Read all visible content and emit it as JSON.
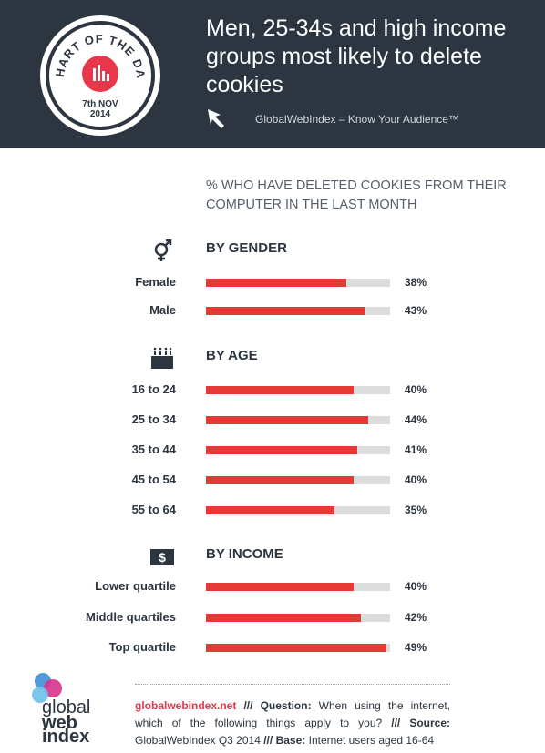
{
  "header": {
    "title": "Men, 25-34s and high income groups most likely to delete cookies",
    "credit": "GlobalWebIndex – Know Your Audience™",
    "badge_text": "CHART OF THE DAY",
    "badge_date_line1": "7th NOV",
    "badge_date_line2": "2014"
  },
  "subtitle": "% WHO HAVE DELETED COOKIES FROM THEIR COMPUTER IN THE LAST MONTH",
  "colors": {
    "header_bg": "#2c3540",
    "bar": "#e53935",
    "track": "#dcdcdc",
    "accent": "#e8374a"
  },
  "chart_data": [
    {
      "type": "bar",
      "title": "BY GENDER",
      "icon": "gender-icon",
      "categories": [
        "Female",
        "Male"
      ],
      "values": [
        38,
        43
      ],
      "value_labels": [
        "38%",
        "43%"
      ],
      "xlim": [
        0,
        50
      ]
    },
    {
      "type": "bar",
      "title": "BY AGE",
      "icon": "birthday-cake-icon",
      "categories": [
        "16 to 24",
        "25 to 34",
        "35 to 44",
        "45 to 54",
        "55 to 64"
      ],
      "values": [
        40,
        44,
        41,
        40,
        35
      ],
      "value_labels": [
        "40%",
        "44%",
        "41%",
        "40%",
        "35%"
      ],
      "xlim": [
        0,
        50
      ]
    },
    {
      "type": "bar",
      "title": "BY INCOME",
      "icon": "dollar-icon",
      "categories": [
        "Lower quartile",
        "Middle quartiles",
        "Top quartile"
      ],
      "values": [
        40,
        42,
        49
      ],
      "value_labels": [
        "40%",
        "42%",
        "49%"
      ],
      "xlim": [
        0,
        50
      ]
    }
  ],
  "logo": {
    "line1": "global",
    "line2": "web",
    "line3": "index"
  },
  "footer": {
    "site": "globalwebindex.net",
    "sep": "///",
    "question_label": "Question:",
    "question_text": "When using the internet, which of the following things apply to you?",
    "source_label": "Source:",
    "source_text": "GlobalWebIndex Q3 2014",
    "base_label": "Base:",
    "base_text": "Internet users aged 16-64"
  }
}
